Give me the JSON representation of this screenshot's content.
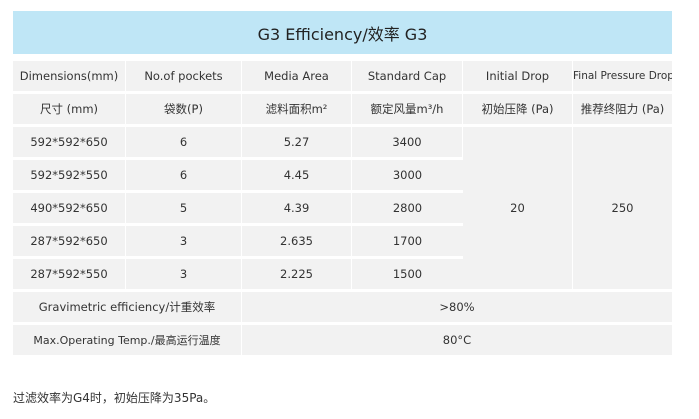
{
  "title": "G3  Efficiency/效率  G3",
  "header_en": [
    "Dimensions(mm)",
    "No.of pockets",
    "Media Area",
    "Standard Cap",
    "Initial Drop",
    "Final Pressure Drop"
  ],
  "header_cn": [
    "尺寸  (mm)",
    "袋数(P)",
    "滤料面积m²",
    "额定风量m³/h",
    "初始压降 (Pa)",
    "推荐终阻力 (Pa)"
  ],
  "rows": [
    {
      "dim": "592*592*650",
      "pockets": "6",
      "area": "5.27",
      "cap": "3400"
    },
    {
      "dim": "592*592*550",
      "pockets": "6",
      "area": "4.45",
      "cap": "3000"
    },
    {
      "dim": "490*592*650",
      "pockets": "5",
      "area": "4.39",
      "cap": "2800"
    },
    {
      "dim": "287*592*650",
      "pockets": "3",
      "area": "2.635",
      "cap": "1700"
    },
    {
      "dim": "287*592*550",
      "pockets": "3",
      "area": "2.225",
      "cap": "1500"
    }
  ],
  "initial_drop": "20",
  "final_drop": "250",
  "gravimetric": {
    "label": "Gravimetric efficiency/计重效率",
    "value": ">80%"
  },
  "max_temp": {
    "label": "Max.Operating Temp./最高运行温度",
    "value": "80°C"
  },
  "note": "过滤效率为G4时，初始压降为35Pa。"
}
